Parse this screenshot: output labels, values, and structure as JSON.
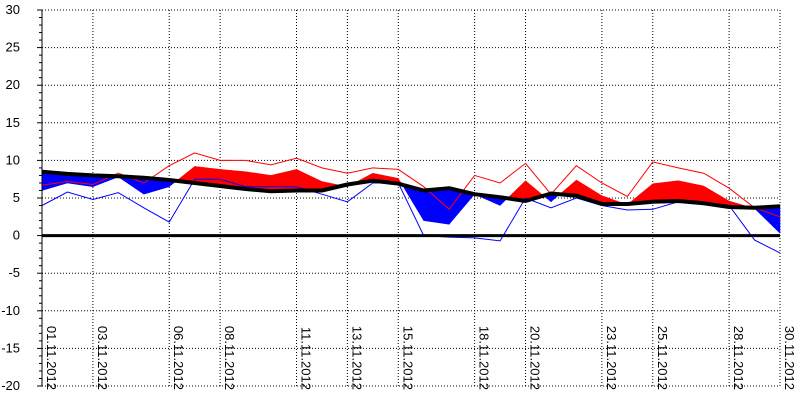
{
  "chart_data": {
    "type": "area",
    "ylim": [
      -20,
      30
    ],
    "yticks": [
      -20,
      -15,
      -10,
      -5,
      0,
      5,
      10,
      15,
      20,
      25,
      30
    ],
    "xlim": [
      1,
      30
    ],
    "xtick_labels": [
      "01.11.2012",
      "03.11.2012",
      "06.11.2012",
      "08.11.2012",
      "11.11.2012",
      "13.11.2012",
      "15.11.2012",
      "18.11.2012",
      "20.11.2012",
      "23.11.2012",
      "25.11.2012",
      "28.11.2012",
      "30.11.2012"
    ],
    "xtick_days": [
      1,
      3,
      6,
      8,
      11,
      13,
      15,
      18,
      20,
      23,
      25,
      28,
      30
    ],
    "x": [
      1,
      2,
      3,
      4,
      5,
      6,
      7,
      8,
      9,
      10,
      11,
      12,
      13,
      14,
      15,
      16,
      17,
      18,
      19,
      20,
      21,
      22,
      23,
      24,
      25,
      26,
      27,
      28,
      29,
      30
    ],
    "grid": true,
    "series": [
      {
        "role": "baseline",
        "color": "#000000",
        "values": [
          8.5,
          8.2,
          8.0,
          7.9,
          7.7,
          7.4,
          7.0,
          6.6,
          6.2,
          5.9,
          6.0,
          6.0,
          6.8,
          7.3,
          6.9,
          6.0,
          6.3,
          5.5,
          5.1,
          4.6,
          5.6,
          5.3,
          4.2,
          4.2,
          4.5,
          4.6,
          4.3,
          3.8,
          3.7,
          3.9
        ]
      },
      {
        "role": "actual",
        "color": "#ff0000",
        "values": [
          6.0,
          7.0,
          6.5,
          7.8,
          5.5,
          6.5,
          9.2,
          8.8,
          8.5,
          8.0,
          8.8,
          7.2,
          6.5,
          8.3,
          7.6,
          2.0,
          1.5,
          5.5,
          4.0,
          7.3,
          4.5,
          7.4,
          5.3,
          4.1,
          6.9,
          7.3,
          6.6,
          4.6,
          3.6,
          0.3
        ]
      },
      {
        "role": "upper",
        "color": "#ff0000",
        "values": [
          6.7,
          7.2,
          6.8,
          8.3,
          7.0,
          9.3,
          11.0,
          10.0,
          10.0,
          9.4,
          10.3,
          9.0,
          8.3,
          9.0,
          8.8,
          6.5,
          3.5,
          8.0,
          7.0,
          9.6,
          5.5,
          9.3,
          7.0,
          5.2,
          9.8,
          9.0,
          8.3,
          6.3,
          3.7,
          2.5
        ]
      },
      {
        "role": "lower",
        "color": "#0000ff",
        "values": [
          4.0,
          5.8,
          4.8,
          5.7,
          3.7,
          1.8,
          7.5,
          7.5,
          6.5,
          6.5,
          6.5,
          5.5,
          4.5,
          7.0,
          7.0,
          0.0,
          -0.2,
          -0.3,
          -0.7,
          5.0,
          3.7,
          5.0,
          4.0,
          3.4,
          3.5,
          4.5,
          4.4,
          4.0,
          -0.6,
          -2.3
        ]
      }
    ]
  }
}
